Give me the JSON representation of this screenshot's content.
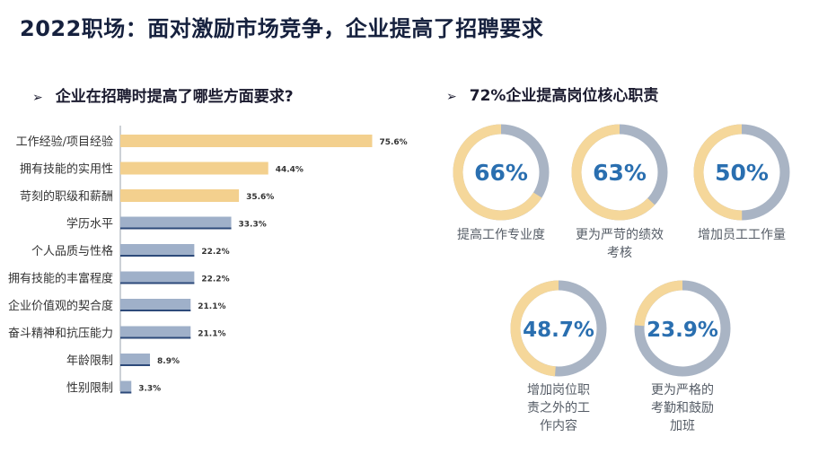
{
  "page": {
    "title": "2022职场：面对激励市场竞争，企业提高了招聘要求"
  },
  "left_section": {
    "arrow": "➢",
    "title": "企业在招聘时提高了哪些方面要求?"
  },
  "right_section": {
    "arrow": "➢",
    "title": "72%企业提高岗位核心职责"
  },
  "colors": {
    "highlight_bar": "#f3d08e",
    "normal_bar": "#9fb0c9",
    "bar_underline": "#2d4a7a",
    "ring_track": "#a9b4c4",
    "ring_value": "#f5d79a",
    "ring_text": "#2a6fb0"
  },
  "chart_data": [
    {
      "type": "bar",
      "orientation": "horizontal",
      "categories": [
        "工作经验/项目经验",
        "拥有技能的实用性",
        "苛刻的职级和薪酬",
        "学历水平",
        "个人品质与性格",
        "拥有技能的丰富程度",
        "企业价值观的契合度",
        "奋斗精神和抗压能力",
        "年龄限制",
        "性别限制"
      ],
      "values": [
        75.6,
        44.4,
        35.6,
        33.3,
        22.2,
        22.2,
        21.1,
        21.1,
        8.9,
        3.3
      ],
      "value_labels": [
        "75.6%",
        "44.4%",
        "35.6%",
        "33.3%",
        "22.2%",
        "22.2%",
        "21.1%",
        "21.1%",
        "8.9%",
        "3.3%"
      ],
      "highlighted": [
        true,
        true,
        true,
        false,
        false,
        false,
        false,
        false,
        false,
        false
      ],
      "xlim": [
        0,
        80
      ],
      "grid": false
    },
    {
      "type": "donut",
      "items": [
        {
          "value": 66,
          "value_label": "66%",
          "label": "提高工作专业度"
        },
        {
          "value": 63,
          "value_label": "63%",
          "label": "更为严苛的绩效考核"
        },
        {
          "value": 50,
          "value_label": "50%",
          "label": "增加员工工作量"
        },
        {
          "value": 48.7,
          "value_label": "48.7%",
          "label": "增加岗位职责之外的工作内容"
        },
        {
          "value": 23.9,
          "value_label": "23.9%",
          "label": "更为严格的考勤和鼓励加班"
        }
      ]
    }
  ]
}
